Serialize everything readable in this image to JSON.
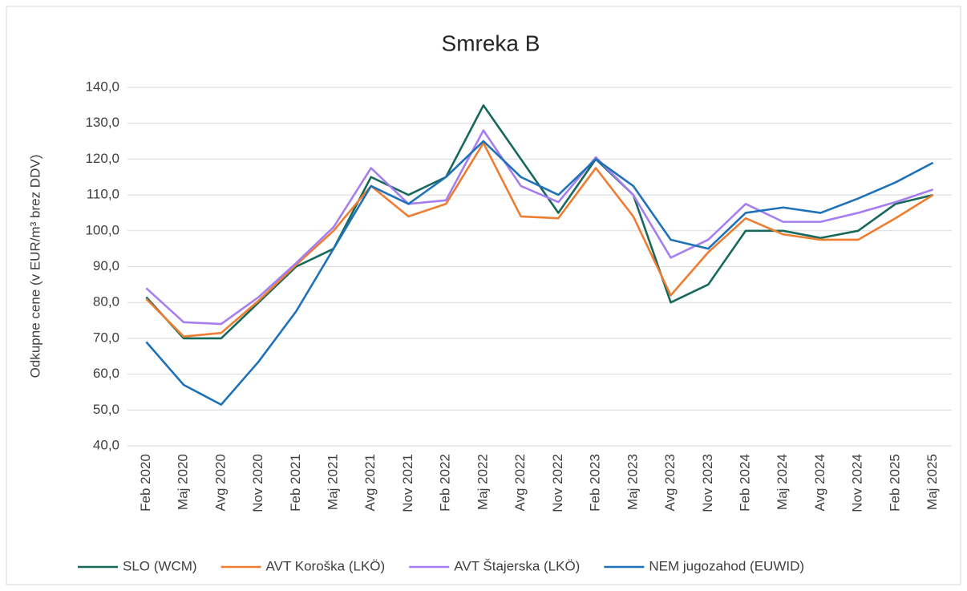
{
  "chart_data": {
    "type": "line",
    "title": "Smreka B",
    "y_label": "Odkupne cene (v EUR/m³ brez DDV)",
    "categories": [
      "Feb 2020",
      "Maj 2020",
      "Avg 2020",
      "Nov 2020",
      "Feb 2021",
      "Maj 2021",
      "Avg 2021",
      "Nov 2021",
      "Feb 2022",
      "Maj 2022",
      "Avg 2022",
      "Nov 2022",
      "Feb 2023",
      "Maj 2023",
      "Avg 2023",
      "Nov 2023",
      "Feb 2024",
      "Maj 2024",
      "Avg 2024",
      "Nov 2024",
      "Feb 2025",
      "Maj 2025"
    ],
    "series": [
      {
        "name": "SLO (WCM)",
        "color": "#17695b",
        "values": [
          81.5,
          70,
          70,
          80,
          90,
          95,
          115,
          110,
          115,
          135,
          120,
          105,
          120,
          110,
          80,
          85,
          100,
          100,
          98,
          100,
          107.5,
          110
        ]
      },
      {
        "name": "AVT Koroška (LKÖ)",
        "color": "#ed7d31",
        "values": [
          81,
          70.5,
          71.5,
          80.5,
          90.5,
          100,
          112.5,
          104,
          107.5,
          124.5,
          104,
          103.5,
          117.5,
          104,
          82,
          94,
          103.5,
          99,
          97.5,
          97.5,
          103.5,
          110
        ]
      },
      {
        "name": "AVT Štajerska (LKÖ)",
        "color": "#a57ef0",
        "values": [
          84,
          74.5,
          74,
          81.5,
          91,
          101,
          117.5,
          107.5,
          108.5,
          128,
          112.5,
          108,
          120.5,
          110,
          92.5,
          97.5,
          107.5,
          102.5,
          102.5,
          105,
          108,
          111.5
        ]
      },
      {
        "name": "NEM jugozahod (EUWID)",
        "color": "#1f72b8",
        "values": [
          69,
          57,
          51.5,
          63.5,
          77.5,
          95,
          112.5,
          107.5,
          115,
          125,
          115,
          110,
          120,
          112.5,
          97.5,
          95,
          105,
          106.5,
          105,
          109,
          113.5,
          119
        ]
      }
    ],
    "ylim": [
      40,
      140
    ],
    "yticks": [
      {
        "value": 40,
        "label": "40,0"
      },
      {
        "value": 50,
        "label": "50,0"
      },
      {
        "value": 60,
        "label": "60,0"
      },
      {
        "value": 70,
        "label": "70,0"
      },
      {
        "value": 80,
        "label": "80,0"
      },
      {
        "value": 90,
        "label": "90,0"
      },
      {
        "value": 100,
        "label": "100,0"
      },
      {
        "value": 110,
        "label": "110,0"
      },
      {
        "value": 120,
        "label": "120,0"
      },
      {
        "value": 130,
        "label": "130,0"
      },
      {
        "value": 140,
        "label": "140,0"
      }
    ],
    "grid": true,
    "legend": "bottom"
  }
}
